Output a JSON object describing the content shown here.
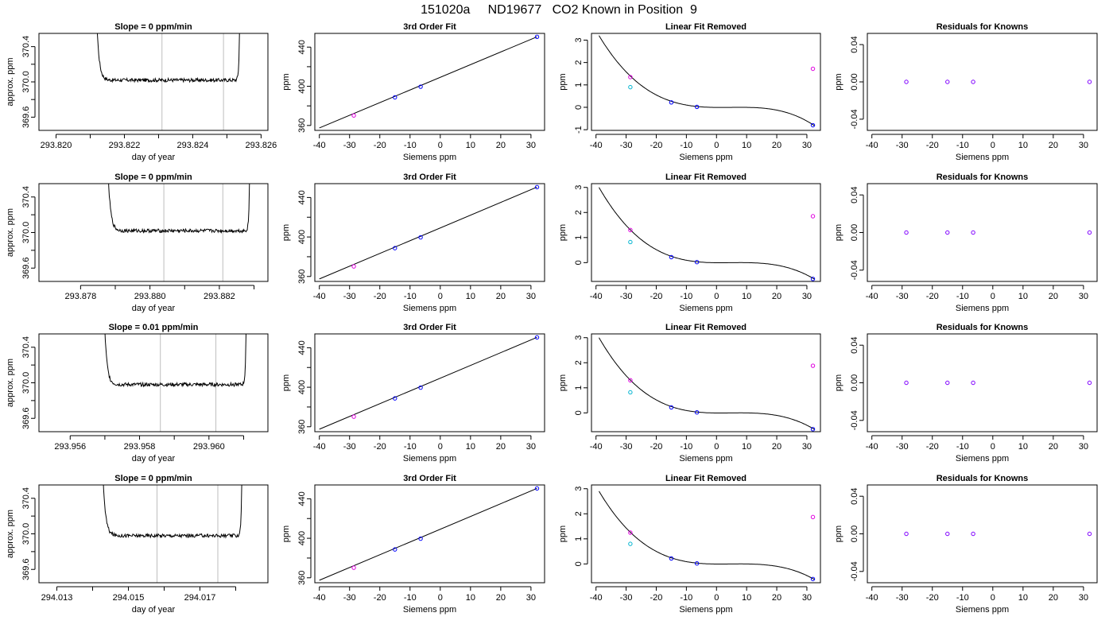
{
  "page": {
    "title": "151020a     ND19677   CO2 Known in Position  9"
  },
  "colors": {
    "axis": "#000000",
    "trace": "#000000",
    "vline": "#bebebe",
    "known_point": "#0000ff",
    "magenta_point": "#e000e0",
    "cyan_point": "#00b4d0",
    "purple_point": "#8000ff"
  },
  "chart_data": [
    {
      "type": "line",
      "row": 0,
      "title": "Slope =  0  ppm/min",
      "xlabel": "day of year",
      "ylabel": "approx. ppm",
      "xlim": [
        293.8195,
        293.8262
      ],
      "ylim": [
        369.45,
        370.55
      ],
      "xticks": [
        293.82,
        293.821,
        293.822,
        293.823,
        293.824,
        293.825,
        293.826
      ],
      "xticklabels": [
        "293.820",
        "",
        "293.822",
        "",
        "293.824",
        "",
        "293.826"
      ],
      "yticks": [
        369.6,
        369.8,
        370.0,
        370.2,
        370.4
      ],
      "yticklabels": [
        "369.6",
        "",
        "370.0",
        "",
        "370.4"
      ],
      "vlines": [
        293.8231,
        293.8249
      ],
      "trace": {
        "start": 293.8211,
        "end": 293.8254,
        "plateau": 370.02,
        "noise": 0.02,
        "tau": 7e-05
      }
    },
    {
      "type": "line",
      "row": 0,
      "title": "3rd Order Fit",
      "xlabel": "Siemens ppm",
      "ylabel": "ppm",
      "xlim": [
        -41.5,
        34.5
      ],
      "ylim": [
        355,
        454
      ],
      "xticks": [
        -40,
        -30,
        -20,
        -10,
        0,
        10,
        20,
        30
      ],
      "xticklabels": [
        "-40",
        "-30",
        "-20",
        "-10",
        "0",
        "10",
        "20",
        "30"
      ],
      "yticks": [
        360,
        380,
        400,
        420,
        440
      ],
      "yticklabels": [
        "360",
        "",
        "400",
        "",
        "440"
      ],
      "line": {
        "x": [
          -40,
          32
        ],
        "y": [
          357.5,
          450.5
        ]
      },
      "points": [
        {
          "x": -28.6,
          "y": 370.2,
          "color": "magenta_point"
        },
        {
          "x": -15,
          "y": 388.7,
          "color": "known_point"
        },
        {
          "x": -6.5,
          "y": 399.6,
          "color": "known_point"
        },
        {
          "x": 32,
          "y": 450.5,
          "color": "known_point"
        }
      ]
    },
    {
      "type": "line",
      "row": 0,
      "title": "Linear Fit Removed",
      "xlabel": "Siemens ppm",
      "ylabel": "ppm",
      "xlim": [
        -41.5,
        34.5
      ],
      "ylim": [
        -1.03,
        3.3
      ],
      "xticks": [
        -40,
        -30,
        -20,
        -10,
        0,
        10,
        20,
        30
      ],
      "xticklabels": [
        "-40",
        "-30",
        "-20",
        "-10",
        "0",
        "10",
        "20",
        "30"
      ],
      "yticks": [
        -1,
        0,
        1,
        2,
        3
      ],
      "yticklabels": [
        "-1",
        "0",
        "1",
        "2",
        "3"
      ],
      "curve": {
        "x0": -39,
        "y0": 3.2,
        "x1": 32.5,
        "y1": -0.82
      },
      "points": [
        {
          "x": -28.6,
          "y": 1.35,
          "color": "magenta_point"
        },
        {
          "x": -28.6,
          "y": 0.9,
          "color": "cyan_point"
        },
        {
          "x": -15,
          "y": 0.22,
          "color": "known_point"
        },
        {
          "x": -6.5,
          "y": 0.02,
          "color": "known_point"
        },
        {
          "x": 32,
          "y": 1.72,
          "color": "magenta_point"
        },
        {
          "x": 32,
          "y": -0.8,
          "color": "known_point"
        }
      ]
    },
    {
      "type": "scatter",
      "row": 0,
      "title": "Residuals for Knowns",
      "xlabel": "Siemens ppm",
      "ylabel": "ppm",
      "xlim": [
        -41.5,
        34.5
      ],
      "ylim": [
        -0.052,
        0.052
      ],
      "xticks": [
        -40,
        -30,
        -20,
        -10,
        0,
        10,
        20,
        30
      ],
      "xticklabels": [
        "-40",
        "-30",
        "-20",
        "-10",
        "0",
        "10",
        "20",
        "30"
      ],
      "yticks": [
        -0.04,
        0.0,
        0.04
      ],
      "yticklabels": [
        "-0.04",
        "0.00",
        "0.04"
      ],
      "points": [
        {
          "x": -28.6,
          "y": 0,
          "color": "purple_point"
        },
        {
          "x": -15,
          "y": 0,
          "color": "purple_point"
        },
        {
          "x": -6.5,
          "y": 0,
          "color": "purple_point"
        },
        {
          "x": 32,
          "y": 0,
          "color": "purple_point"
        }
      ]
    },
    {
      "type": "line",
      "row": 1,
      "title": "Slope =  0  ppm/min",
      "xlabel": "day of year",
      "ylabel": "approx. ppm",
      "xlim": [
        293.8768,
        293.8834
      ],
      "ylim": [
        369.45,
        370.55
      ],
      "xticks": [
        293.878,
        293.879,
        293.88,
        293.881,
        293.882,
        293.883
      ],
      "xticklabels": [
        "293.878",
        "",
        "293.880",
        "",
        "293.882",
        ""
      ],
      "yticks": [
        369.6,
        369.8,
        370.0,
        370.2,
        370.4
      ],
      "yticklabels": [
        "369.6",
        "",
        "370.0",
        "",
        "370.4"
      ],
      "vlines": [
        293.8804,
        293.8821
      ],
      "trace": {
        "start": 293.8787,
        "end": 293.8829,
        "plateau": 370.02,
        "noise": 0.02,
        "tau": 7e-05
      }
    },
    {
      "type": "line",
      "row": 1,
      "title": "3rd Order Fit",
      "xlabel": "Siemens ppm",
      "ylabel": "ppm",
      "xlim": [
        -41.5,
        34.5
      ],
      "ylim": [
        355,
        454
      ],
      "xticks": [
        -40,
        -30,
        -20,
        -10,
        0,
        10,
        20,
        30
      ],
      "xticklabels": [
        "-40",
        "-30",
        "-20",
        "-10",
        "0",
        "10",
        "20",
        "30"
      ],
      "yticks": [
        360,
        380,
        400,
        420,
        440
      ],
      "yticklabels": [
        "360",
        "",
        "400",
        "",
        "440"
      ],
      "line": {
        "x": [
          -40,
          32
        ],
        "y": [
          357.5,
          450.5
        ]
      },
      "points": [
        {
          "x": -28.6,
          "y": 370.2,
          "color": "magenta_point"
        },
        {
          "x": -15,
          "y": 388.7,
          "color": "known_point"
        },
        {
          "x": -6.5,
          "y": 399.6,
          "color": "known_point"
        },
        {
          "x": 32,
          "y": 450.5,
          "color": "known_point"
        }
      ]
    },
    {
      "type": "line",
      "row": 1,
      "title": "Linear Fit Removed",
      "xlabel": "Siemens ppm",
      "ylabel": "ppm",
      "xlim": [
        -41.5,
        34.5
      ],
      "ylim": [
        -0.75,
        3.15
      ],
      "xticks": [
        -40,
        -30,
        -20,
        -10,
        0,
        10,
        20,
        30
      ],
      "xticklabels": [
        "-40",
        "-30",
        "-20",
        "-10",
        "0",
        "10",
        "20",
        "30"
      ],
      "yticks": [
        0,
        1,
        2,
        3
      ],
      "yticklabels": [
        "0",
        "1",
        "2",
        "3"
      ],
      "curve": {
        "x0": -39,
        "y0": 3.0,
        "x1": 32.5,
        "y1": -0.66
      },
      "points": [
        {
          "x": -28.6,
          "y": 1.3,
          "color": "magenta_point"
        },
        {
          "x": -28.6,
          "y": 0.82,
          "color": "cyan_point"
        },
        {
          "x": -15,
          "y": 0.22,
          "color": "known_point"
        },
        {
          "x": -6.5,
          "y": 0.02,
          "color": "known_point"
        },
        {
          "x": 32,
          "y": 1.85,
          "color": "magenta_point"
        },
        {
          "x": 32,
          "y": -0.65,
          "color": "known_point"
        }
      ]
    },
    {
      "type": "scatter",
      "row": 1,
      "title": "Residuals for Knowns",
      "xlabel": "Siemens ppm",
      "ylabel": "ppm",
      "xlim": [
        -41.5,
        34.5
      ],
      "ylim": [
        -0.052,
        0.052
      ],
      "xticks": [
        -40,
        -30,
        -20,
        -10,
        0,
        10,
        20,
        30
      ],
      "xticklabels": [
        "-40",
        "-30",
        "-20",
        "-10",
        "0",
        "10",
        "20",
        "30"
      ],
      "yticks": [
        -0.04,
        0.0,
        0.04
      ],
      "yticklabels": [
        "-0.04",
        "0.00",
        "0.04"
      ],
      "points": [
        {
          "x": -28.6,
          "y": 0,
          "color": "purple_point"
        },
        {
          "x": -15,
          "y": 0,
          "color": "purple_point"
        },
        {
          "x": -6.5,
          "y": 0,
          "color": "purple_point"
        },
        {
          "x": 32,
          "y": 0,
          "color": "purple_point"
        }
      ]
    },
    {
      "type": "line",
      "row": 2,
      "title": "Slope =  0.01  ppm/min",
      "xlabel": "day of year",
      "ylabel": "approx. ppm",
      "xlim": [
        293.9551,
        293.9617
      ],
      "ylim": [
        369.45,
        370.55
      ],
      "xticks": [
        293.956,
        293.957,
        293.958,
        293.959,
        293.96,
        293.961
      ],
      "xticklabels": [
        "293.956",
        "",
        "293.958",
        "",
        "293.960",
        ""
      ],
      "yticks": [
        369.6,
        369.8,
        370.0,
        370.2,
        370.4
      ],
      "yticklabels": [
        "369.6",
        "",
        "370.0",
        "",
        "370.4"
      ],
      "vlines": [
        293.9586,
        293.9602
      ],
      "trace": {
        "start": 293.9569,
        "end": 293.9611,
        "plateau": 369.98,
        "noise": 0.02,
        "tau": 7e-05
      }
    },
    {
      "type": "line",
      "row": 2,
      "title": "3rd Order Fit",
      "xlabel": "Siemens ppm",
      "ylabel": "ppm",
      "xlim": [
        -41.5,
        34.5
      ],
      "ylim": [
        355,
        454
      ],
      "xticks": [
        -40,
        -30,
        -20,
        -10,
        0,
        10,
        20,
        30
      ],
      "xticklabels": [
        "-40",
        "-30",
        "-20",
        "-10",
        "0",
        "10",
        "20",
        "30"
      ],
      "yticks": [
        360,
        380,
        400,
        420,
        440
      ],
      "yticklabels": [
        "360",
        "",
        "400",
        "",
        "440"
      ],
      "line": {
        "x": [
          -40,
          32
        ],
        "y": [
          357.5,
          450.5
        ]
      },
      "points": [
        {
          "x": -28.6,
          "y": 370.2,
          "color": "magenta_point"
        },
        {
          "x": -15,
          "y": 388.7,
          "color": "known_point"
        },
        {
          "x": -6.5,
          "y": 399.6,
          "color": "known_point"
        },
        {
          "x": 32,
          "y": 450.5,
          "color": "known_point"
        }
      ]
    },
    {
      "type": "line",
      "row": 2,
      "title": "Linear Fit Removed",
      "xlabel": "Siemens ppm",
      "ylabel": "ppm",
      "xlim": [
        -41.5,
        34.5
      ],
      "ylim": [
        -0.75,
        3.15
      ],
      "xticks": [
        -40,
        -30,
        -20,
        -10,
        0,
        10,
        20,
        30
      ],
      "xticklabels": [
        "-40",
        "-30",
        "-20",
        "-10",
        "0",
        "10",
        "20",
        "30"
      ],
      "yticks": [
        0,
        1,
        2,
        3
      ],
      "yticklabels": [
        "0",
        "1",
        "2",
        "3"
      ],
      "curve": {
        "x0": -39,
        "y0": 3.0,
        "x1": 32.5,
        "y1": -0.66
      },
      "points": [
        {
          "x": -28.6,
          "y": 1.3,
          "color": "magenta_point"
        },
        {
          "x": -28.6,
          "y": 0.82,
          "color": "cyan_point"
        },
        {
          "x": -15,
          "y": 0.22,
          "color": "known_point"
        },
        {
          "x": -6.5,
          "y": 0.02,
          "color": "known_point"
        },
        {
          "x": 32,
          "y": 1.88,
          "color": "magenta_point"
        },
        {
          "x": 32,
          "y": -0.65,
          "color": "known_point"
        }
      ]
    },
    {
      "type": "scatter",
      "row": 2,
      "title": "Residuals for Knowns",
      "xlabel": "Siemens ppm",
      "ylabel": "ppm",
      "xlim": [
        -41.5,
        34.5
      ],
      "ylim": [
        -0.052,
        0.052
      ],
      "xticks": [
        -40,
        -30,
        -20,
        -10,
        0,
        10,
        20,
        30
      ],
      "xticklabels": [
        "-40",
        "-30",
        "-20",
        "-10",
        "0",
        "10",
        "20",
        "30"
      ],
      "yticks": [
        -0.04,
        0.0,
        0.04
      ],
      "yticklabels": [
        "-0.04",
        "0.00",
        "0.04"
      ],
      "points": [
        {
          "x": -28.6,
          "y": 0,
          "color": "purple_point"
        },
        {
          "x": -15,
          "y": 0,
          "color": "purple_point"
        },
        {
          "x": -6.5,
          "y": 0,
          "color": "purple_point"
        },
        {
          "x": 32,
          "y": 0,
          "color": "purple_point"
        }
      ]
    },
    {
      "type": "line",
      "row": 3,
      "title": "Slope =  0  ppm/min",
      "xlabel": "day of year",
      "ylabel": "approx. ppm",
      "xlim": [
        294.0125,
        294.0189
      ],
      "ylim": [
        369.45,
        370.55
      ],
      "xticks": [
        294.013,
        294.014,
        294.015,
        294.016,
        294.017,
        294.018
      ],
      "xticklabels": [
        "294.013",
        "",
        "294.015",
        "",
        "294.017",
        ""
      ],
      "yticks": [
        369.6,
        369.8,
        370.0,
        370.2,
        370.4
      ],
      "yticklabels": [
        "369.6",
        "",
        "370.0",
        "",
        "370.4"
      ],
      "vlines": [
        294.0158,
        294.0175
      ],
      "trace": {
        "start": 294.0142,
        "end": 294.0182,
        "plateau": 369.98,
        "noise": 0.02,
        "tau": 7e-05
      }
    },
    {
      "type": "line",
      "row": 3,
      "title": "3rd Order Fit",
      "xlabel": "Siemens ppm",
      "ylabel": "ppm",
      "xlim": [
        -41.5,
        34.5
      ],
      "ylim": [
        355,
        454
      ],
      "xticks": [
        -40,
        -30,
        -20,
        -10,
        0,
        10,
        20,
        30
      ],
      "xticklabels": [
        "-40",
        "-30",
        "-20",
        "-10",
        "0",
        "10",
        "20",
        "30"
      ],
      "yticks": [
        360,
        380,
        400,
        420,
        440
      ],
      "yticklabels": [
        "360",
        "",
        "400",
        "",
        "440"
      ],
      "line": {
        "x": [
          -40,
          32
        ],
        "y": [
          357.5,
          450.5
        ]
      },
      "points": [
        {
          "x": -28.6,
          "y": 370.2,
          "color": "magenta_point"
        },
        {
          "x": -15,
          "y": 388.7,
          "color": "known_point"
        },
        {
          "x": -6.5,
          "y": 399.6,
          "color": "known_point"
        },
        {
          "x": 32,
          "y": 450.5,
          "color": "known_point"
        }
      ]
    },
    {
      "type": "line",
      "row": 3,
      "title": "Linear Fit Removed",
      "xlabel": "Siemens ppm",
      "ylabel": "ppm",
      "xlim": [
        -41.5,
        34.5
      ],
      "ylim": [
        -0.75,
        3.15
      ],
      "xticks": [
        -40,
        -30,
        -20,
        -10,
        0,
        10,
        20,
        30
      ],
      "xticklabels": [
        "-40",
        "-30",
        "-20",
        "-10",
        "0",
        "10",
        "20",
        "30"
      ],
      "yticks": [
        0,
        1,
        2,
        3
      ],
      "yticklabels": [
        "0",
        "1",
        "2",
        "3"
      ],
      "curve": {
        "x0": -39,
        "y0": 2.9,
        "x1": 32.5,
        "y1": -0.62
      },
      "points": [
        {
          "x": -28.6,
          "y": 1.25,
          "color": "magenta_point"
        },
        {
          "x": -28.6,
          "y": 0.8,
          "color": "cyan_point"
        },
        {
          "x": -15,
          "y": 0.22,
          "color": "known_point"
        },
        {
          "x": -6.5,
          "y": 0.02,
          "color": "known_point"
        },
        {
          "x": 32,
          "y": 1.87,
          "color": "magenta_point"
        },
        {
          "x": 32,
          "y": -0.6,
          "color": "known_point"
        }
      ]
    },
    {
      "type": "scatter",
      "row": 3,
      "title": "Residuals for Knowns",
      "xlabel": "Siemens ppm",
      "ylabel": "ppm",
      "xlim": [
        -41.5,
        34.5
      ],
      "ylim": [
        -0.052,
        0.052
      ],
      "xticks": [
        -40,
        -30,
        -20,
        -10,
        0,
        10,
        20,
        30
      ],
      "xticklabels": [
        "-40",
        "-30",
        "-20",
        "-10",
        "0",
        "10",
        "20",
        "30"
      ],
      "yticks": [
        -0.04,
        0.0,
        0.04
      ],
      "yticklabels": [
        "-0.04",
        "0.00",
        "0.04"
      ],
      "points": [
        {
          "x": -28.6,
          "y": 0,
          "color": "purple_point"
        },
        {
          "x": -15,
          "y": 0,
          "color": "purple_point"
        },
        {
          "x": -6.5,
          "y": 0,
          "color": "purple_point"
        },
        {
          "x": 32,
          "y": 0,
          "color": "purple_point"
        }
      ]
    }
  ]
}
